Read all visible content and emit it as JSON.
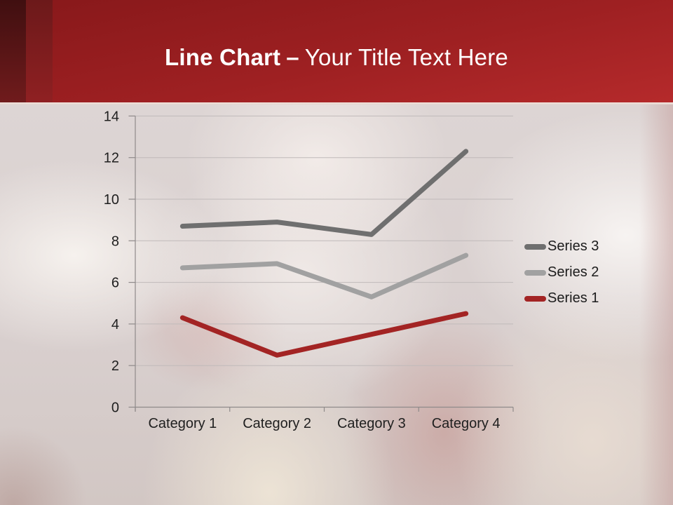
{
  "title": {
    "emphasis": "Line Chart",
    "dash": "–",
    "rest": "Your Title Text Here"
  },
  "chart_data": {
    "type": "line",
    "stacked": true,
    "categories": [
      "Category 1",
      "Category 2",
      "Category 3",
      "Category 4"
    ],
    "series": [
      {
        "name": "Series 1",
        "values": [
          4.3,
          2.5,
          3.5,
          4.5
        ],
        "color": "#a32424"
      },
      {
        "name": "Series 2",
        "values": [
          2.4,
          4.4,
          1.8,
          2.8
        ],
        "color": "#a1a1a1"
      },
      {
        "name": "Series 3",
        "values": [
          2.0,
          2.0,
          3.0,
          5.0
        ],
        "color": "#6f6f6f"
      }
    ],
    "plotted_cumulative": {
      "Series 1": [
        4.3,
        2.5,
        3.5,
        4.5
      ],
      "Series 2": [
        6.7,
        6.9,
        5.3,
        7.3
      ],
      "Series 3": [
        8.7,
        8.9,
        8.3,
        12.3
      ]
    },
    "ylim": [
      0,
      14
    ],
    "yticks": [
      0,
      2,
      4,
      6,
      8,
      10,
      12,
      14
    ],
    "grid": true,
    "legend_position": "right",
    "legend_order_top_to_bottom": [
      "Series 3",
      "Series 2",
      "Series 1"
    ]
  },
  "colors": {
    "banner_red": "#a32123",
    "banner_dark_stripe": "#4a1112",
    "banner_mid_stripe": "#7c1c1d",
    "title_text": "#ffffff",
    "axis_text": "#1f1f1f",
    "gridline": "#c0baba",
    "axis_line": "#8f8a8a",
    "series1_red": "#a32424",
    "series2_gray": "#a1a1a1",
    "series3_gray": "#6f6f6f"
  }
}
